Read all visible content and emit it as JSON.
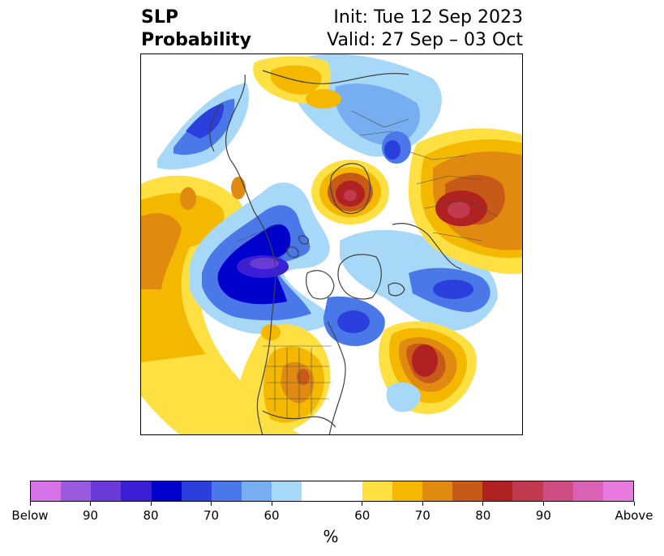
{
  "title": {
    "left_line1": "SLP",
    "left_line2": "Probability",
    "right_line1": "Init: Tue 12 Sep 2023",
    "right_line2": "Valid: 27 Sep – 03 Oct"
  },
  "colorbar": {
    "unit": "%",
    "labels": [
      "Below",
      "90",
      "80",
      "70",
      "60",
      "60",
      "70",
      "80",
      "90",
      "Above"
    ],
    "colors": [
      "#d872e8",
      "#9b59e0",
      "#6a3bd8",
      "#3a1fd6",
      "#0000cd",
      "#2a3fdb",
      "#4a78e8",
      "#77aef0",
      "#a8d8f8",
      "#ffffff",
      "#ffe042",
      "#f4b800",
      "#e08a10",
      "#c85a18",
      "#b02222",
      "#c23a50",
      "#cc4e84",
      "#da62b6",
      "#e67ade"
    ]
  },
  "map": {
    "projection": "north-polar-stereographic",
    "features": [
      "coastlines",
      "country-borders",
      "us-state-borders"
    ],
    "anomaly_colors": {
      "below_strong": "#3a1fd6",
      "below": "#2a3fdb",
      "below_light": "#a8d8f8",
      "above_light": "#ffe042",
      "above": "#e08a10",
      "above_strong": "#b02222"
    }
  }
}
